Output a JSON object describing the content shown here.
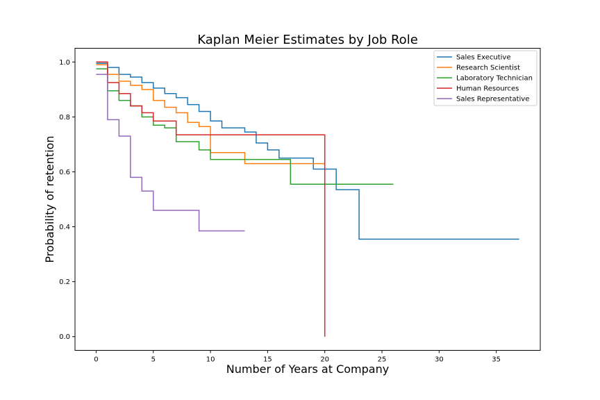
{
  "chart_data": {
    "type": "line",
    "step": true,
    "title": "Kaplan Meier Estimates by Job Role",
    "xlabel": "Number of Years at Company",
    "ylabel": "Probability of retention",
    "xlim": [
      -1.85,
      38.85
    ],
    "ylim": [
      -0.05,
      1.05
    ],
    "xticks": [
      0,
      5,
      10,
      15,
      20,
      25,
      30,
      35
    ],
    "yticks": [
      0.0,
      0.2,
      0.4,
      0.6,
      0.8,
      1.0
    ],
    "xtick_labels": [
      "0",
      "5",
      "10",
      "15",
      "20",
      "25",
      "30",
      "35"
    ],
    "ytick_labels": [
      "0.0",
      "0.2",
      "0.4",
      "0.6",
      "0.8",
      "1.0"
    ],
    "grid": false,
    "legend_position": "top-right",
    "series": [
      {
        "name": "Sales Executive",
        "color": "#1f77b4",
        "x": [
          0,
          1,
          2,
          3,
          4,
          5,
          6,
          7,
          8,
          9,
          10,
          11,
          13,
          14,
          15,
          16,
          19,
          21,
          23,
          37
        ],
        "y": [
          0.995,
          0.98,
          0.955,
          0.945,
          0.925,
          0.905,
          0.885,
          0.87,
          0.845,
          0.82,
          0.785,
          0.76,
          0.745,
          0.705,
          0.68,
          0.65,
          0.61,
          0.535,
          0.355,
          0.355
        ]
      },
      {
        "name": "Research Scientist",
        "color": "#ff7f0e",
        "x": [
          0,
          1,
          2,
          3,
          4,
          5,
          6,
          7,
          8,
          9,
          10,
          13,
          20
        ],
        "y": [
          0.99,
          0.955,
          0.93,
          0.915,
          0.9,
          0.86,
          0.835,
          0.815,
          0.78,
          0.765,
          0.67,
          0.63,
          0.63
        ]
      },
      {
        "name": "Laboratory Technician",
        "color": "#2ca02c",
        "x": [
          0,
          1,
          2,
          3,
          4,
          5,
          6,
          7,
          9,
          10,
          17,
          26
        ],
        "y": [
          0.975,
          0.895,
          0.86,
          0.84,
          0.8,
          0.77,
          0.76,
          0.71,
          0.68,
          0.645,
          0.555,
          0.555
        ]
      },
      {
        "name": "Human Resources",
        "color": "#d62728",
        "x": [
          0,
          1,
          2,
          3,
          4,
          5,
          7,
          20,
          20
        ],
        "y": [
          1.0,
          0.925,
          0.885,
          0.84,
          0.815,
          0.785,
          0.735,
          0.735,
          0.0
        ]
      },
      {
        "name": "Sales Representative",
        "color": "#9467bd",
        "x": [
          0,
          1,
          2,
          3,
          4,
          5,
          9,
          13
        ],
        "y": [
          0.955,
          0.79,
          0.73,
          0.58,
          0.53,
          0.46,
          0.385,
          0.385
        ]
      }
    ]
  }
}
